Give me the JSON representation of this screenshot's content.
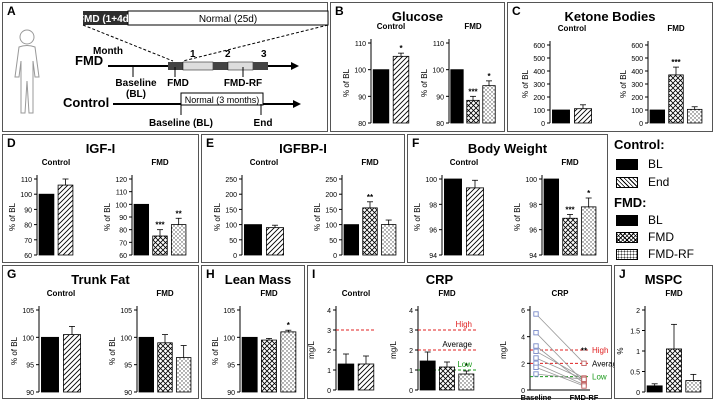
{
  "panelA": {
    "letter": "A",
    "bar_fmd": "FMD (1+4d)",
    "bar_normal": "Normal (25d)",
    "month": "Month",
    "cycles": [
      "1",
      "2",
      "3"
    ],
    "fmd_label": "FMD",
    "control_label": "Control",
    "baseline": "Baseline (BL)",
    "baseline_fmd_1": "Baseline",
    "baseline_fmd_2": "(BL)",
    "fmd_point": "FMD",
    "fmdrf_point": "FMD-RF",
    "normal3": "Normal (3 months)",
    "end": "End"
  },
  "legend": {
    "control_header": "Control:",
    "fmd_header": "FMD:",
    "bl": "BL",
    "end": "End",
    "fmd": "FMD",
    "fmdrf": "FMD-RF"
  },
  "chart_data": [
    {
      "id": "B",
      "title": "Glucose",
      "type": "bar",
      "ylabel": "% of BL",
      "subplots": [
        {
          "label": "Control",
          "categories": [
            "BL",
            "End"
          ],
          "values": [
            100,
            105
          ],
          "errors": [
            0,
            1.2
          ],
          "sig": [
            "",
            "*"
          ],
          "ylim": [
            80,
            110
          ],
          "ticks": [
            80,
            90,
            100,
            110
          ]
        },
        {
          "label": "FMD",
          "categories": [
            "BL",
            "FMD",
            "FMD-RF"
          ],
          "values": [
            100,
            88.5,
            94
          ],
          "errors": [
            0,
            1.5,
            1.8
          ],
          "sig": [
            "",
            "***",
            "*"
          ],
          "ylim": [
            80,
            110
          ],
          "ticks": [
            80,
            90,
            100,
            110
          ]
        }
      ]
    },
    {
      "id": "C",
      "title": "Ketone Bodies",
      "type": "bar",
      "ylabel": "% of BL",
      "subplots": [
        {
          "label": "Control",
          "categories": [
            "BL",
            "End"
          ],
          "values": [
            100,
            110
          ],
          "errors": [
            0,
            30
          ],
          "sig": [
            "",
            ""
          ],
          "ylim": [
            0,
            600
          ],
          "ticks": [
            0,
            100,
            200,
            300,
            400,
            500,
            600
          ]
        },
        {
          "label": "FMD",
          "categories": [
            "BL",
            "FMD",
            "FMD-RF"
          ],
          "values": [
            100,
            370,
            105
          ],
          "errors": [
            0,
            60,
            20
          ],
          "sig": [
            "",
            "***",
            ""
          ],
          "ylim": [
            0,
            600
          ],
          "ticks": [
            0,
            100,
            200,
            300,
            400,
            500,
            600
          ]
        }
      ]
    },
    {
      "id": "D",
      "title": "IGF-I",
      "type": "bar",
      "ylabel": "% of BL",
      "subplots": [
        {
          "label": "Control",
          "categories": [
            "BL",
            "End"
          ],
          "values": [
            100,
            106
          ],
          "errors": [
            0,
            4
          ],
          "sig": [
            "",
            ""
          ],
          "ylim": [
            60,
            110
          ],
          "ticks": [
            60,
            70,
            80,
            90,
            100,
            110
          ]
        },
        {
          "label": "FMD",
          "categories": [
            "BL",
            "FMD",
            "FMD-RF"
          ],
          "values": [
            100,
            75,
            84
          ],
          "errors": [
            0,
            5,
            5
          ],
          "sig": [
            "",
            "***",
            "**"
          ],
          "ylim": [
            60,
            120
          ],
          "ticks": [
            60,
            70,
            80,
            90,
            100,
            110,
            120
          ]
        }
      ]
    },
    {
      "id": "E",
      "title": "IGFBP-I",
      "type": "bar",
      "ylabel": "% of BL",
      "subplots": [
        {
          "label": "Control",
          "categories": [
            "BL",
            "End"
          ],
          "values": [
            100,
            90
          ],
          "errors": [
            0,
            8
          ],
          "sig": [
            "",
            ""
          ],
          "ylim": [
            0,
            250
          ],
          "ticks": [
            0,
            50,
            100,
            150,
            200,
            250
          ]
        },
        {
          "label": "FMD",
          "categories": [
            "BL",
            "FMD",
            "FMD-RF"
          ],
          "values": [
            100,
            155,
            100
          ],
          "errors": [
            0,
            20,
            15
          ],
          "sig": [
            "",
            "**",
            ""
          ],
          "ylim": [
            0,
            250
          ],
          "ticks": [
            0,
            50,
            100,
            150,
            200,
            250
          ]
        }
      ]
    },
    {
      "id": "F",
      "title": "Body Weight",
      "type": "bar",
      "ylabel": "% of BL",
      "subplots": [
        {
          "label": "Control",
          "categories": [
            "BL",
            "End"
          ],
          "values": [
            100,
            99.3
          ],
          "errors": [
            0,
            0.6
          ],
          "sig": [
            "",
            ""
          ],
          "ylim": [
            94,
            100
          ],
          "ticks": [
            94,
            96,
            98,
            100
          ]
        },
        {
          "label": "FMD",
          "categories": [
            "BL",
            "FMD",
            "FMD-RF"
          ],
          "values": [
            100,
            96.9,
            97.8
          ],
          "errors": [
            0,
            0.3,
            0.7
          ],
          "sig": [
            "",
            "***",
            "*"
          ],
          "ylim": [
            94,
            100
          ],
          "ticks": [
            94,
            96,
            98,
            100
          ]
        }
      ]
    },
    {
      "id": "G",
      "title": "Trunk Fat",
      "type": "bar",
      "ylabel": "% of BL",
      "subplots": [
        {
          "label": "Control",
          "categories": [
            "BL",
            "End"
          ],
          "values": [
            100,
            100.5
          ],
          "errors": [
            0,
            1.5
          ],
          "sig": [
            "",
            ""
          ],
          "ylim": [
            90,
            105
          ],
          "ticks": [
            90,
            95,
            100,
            105
          ]
        },
        {
          "label": "FMD",
          "categories": [
            "BL",
            "FMD",
            "FMD-RF"
          ],
          "values": [
            100,
            99,
            96.3
          ],
          "errors": [
            0,
            1.5,
            2.2
          ],
          "sig": [
            "",
            "",
            ""
          ],
          "ylim": [
            90,
            105
          ],
          "ticks": [
            90,
            95,
            100,
            105
          ]
        }
      ]
    },
    {
      "id": "H",
      "title": "Lean Mass",
      "type": "bar",
      "ylabel": "% of BL",
      "subplots": [
        {
          "label": "FMD",
          "categories": [
            "BL",
            "FMD",
            "FMD-RF"
          ],
          "values": [
            100,
            99.5,
            101
          ],
          "errors": [
            0,
            0.3,
            0.3
          ],
          "sig": [
            "",
            "",
            "*"
          ],
          "ylim": [
            90,
            105
          ],
          "ticks": [
            90,
            95,
            100,
            105
          ]
        }
      ]
    },
    {
      "id": "I",
      "title": "CRP",
      "type": "bar",
      "ylabel": "mg/L",
      "subplots": [
        {
          "label": "Control",
          "categories": [
            "BL",
            "End"
          ],
          "values": [
            1.3,
            1.3
          ],
          "errors": [
            0.5,
            0.4
          ],
          "sig": [
            "",
            ""
          ],
          "ylim": [
            0,
            4
          ],
          "ticks": [
            0,
            1,
            2,
            3,
            4
          ],
          "ref_lines": [
            {
              "label": "High",
              "value": 3
            }
          ]
        },
        {
          "label": "FMD",
          "categories": [
            "BL",
            "FMD",
            "FMD-RF"
          ],
          "values": [
            1.45,
            1.15,
            0.8
          ],
          "errors": [
            0.45,
            0.25,
            0.15
          ],
          "sig": [
            "",
            "",
            "*"
          ],
          "ylim": [
            0,
            4
          ],
          "ticks": [
            0,
            1,
            2,
            3,
            4
          ],
          "ref_lines": [
            {
              "label": "High",
              "value": 3
            },
            {
              "label": "Average",
              "value": 2
            },
            {
              "label": "Low",
              "value": 1
            }
          ]
        }
      ]
    },
    {
      "id": "I-line",
      "title": "CRP",
      "type": "line",
      "ylabel": "mg/L",
      "x": [
        "Baseline",
        "FMD-RF"
      ],
      "ylim": [
        0,
        6
      ],
      "ticks": [
        0,
        2,
        4,
        6
      ],
      "sig_text": "**",
      "series": [
        {
          "values": [
            5.7,
            2.0
          ]
        },
        {
          "values": [
            4.3,
            0.6
          ]
        },
        {
          "values": [
            3.3,
            0.5
          ]
        },
        {
          "values": [
            2.9,
            0.9
          ]
        },
        {
          "values": [
            2.4,
            0.8
          ]
        },
        {
          "values": [
            2.0,
            0.4
          ]
        },
        {
          "values": [
            1.7,
            0.3
          ]
        },
        {
          "values": [
            1.2,
            0.8
          ]
        }
      ],
      "ref_lines": [
        {
          "label": "High",
          "value": 3
        },
        {
          "label": "Average",
          "value": 2
        },
        {
          "label": "Low",
          "value": 1
        }
      ]
    },
    {
      "id": "J",
      "title": "MSPC",
      "type": "bar",
      "ylabel": "%",
      "subplots": [
        {
          "label": "FMD",
          "categories": [
            "BL",
            "FMD",
            "FMD-RF"
          ],
          "values": [
            0.15,
            1.05,
            0.28
          ],
          "errors": [
            0.05,
            0.6,
            0.15
          ],
          "sig": [
            "",
            "",
            ""
          ],
          "ylim": [
            0,
            2
          ],
          "ticks": [
            0,
            0.5,
            1.0,
            1.5,
            2.0
          ]
        }
      ]
    }
  ]
}
